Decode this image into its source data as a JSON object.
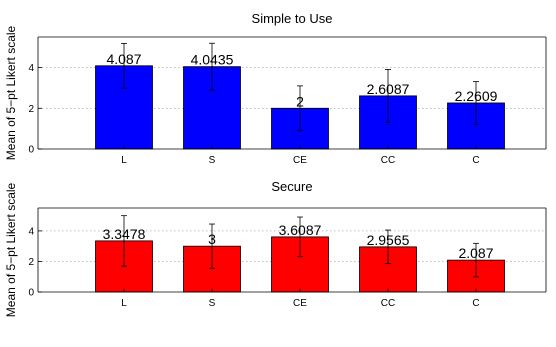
{
  "chart_data": [
    {
      "type": "bar",
      "title": "Simple to Use",
      "ylabel": "Mean of 5−pt Likert scale",
      "xlabel": "",
      "categories": [
        "L",
        "S",
        "CE",
        "CC",
        "C"
      ],
      "values": [
        4.087,
        4.0435,
        2,
        2.6087,
        2.2609
      ],
      "value_labels": [
        "4.087",
        "4.0435",
        "2",
        "2.6087",
        "2.2609"
      ],
      "errors": [
        1.1,
        1.15,
        1.1,
        1.3,
        1.05
      ],
      "ylim": [
        0,
        5.5
      ],
      "yticks": [
        0,
        2,
        4
      ],
      "ytick_labels": [
        "0",
        "2",
        "4"
      ],
      "bar_color": "#0000ff",
      "grid": true
    },
    {
      "type": "bar",
      "title": "Secure",
      "ylabel": "Mean of 5−pt Likert scale",
      "xlabel": "",
      "categories": [
        "L",
        "S",
        "CE",
        "CC",
        "C"
      ],
      "values": [
        3.3478,
        3,
        3.6087,
        2.9565,
        2.087
      ],
      "value_labels": [
        "3.3478",
        "3",
        "3.6087",
        "2.9565",
        "2.087"
      ],
      "errors": [
        1.65,
        1.45,
        1.3,
        1.1,
        1.1
      ],
      "ylim": [
        0,
        5.5
      ],
      "yticks": [
        0,
        2,
        4
      ],
      "ytick_labels": [
        "0",
        "2",
        "4"
      ],
      "bar_color": "#ff0000",
      "grid": true
    }
  ]
}
